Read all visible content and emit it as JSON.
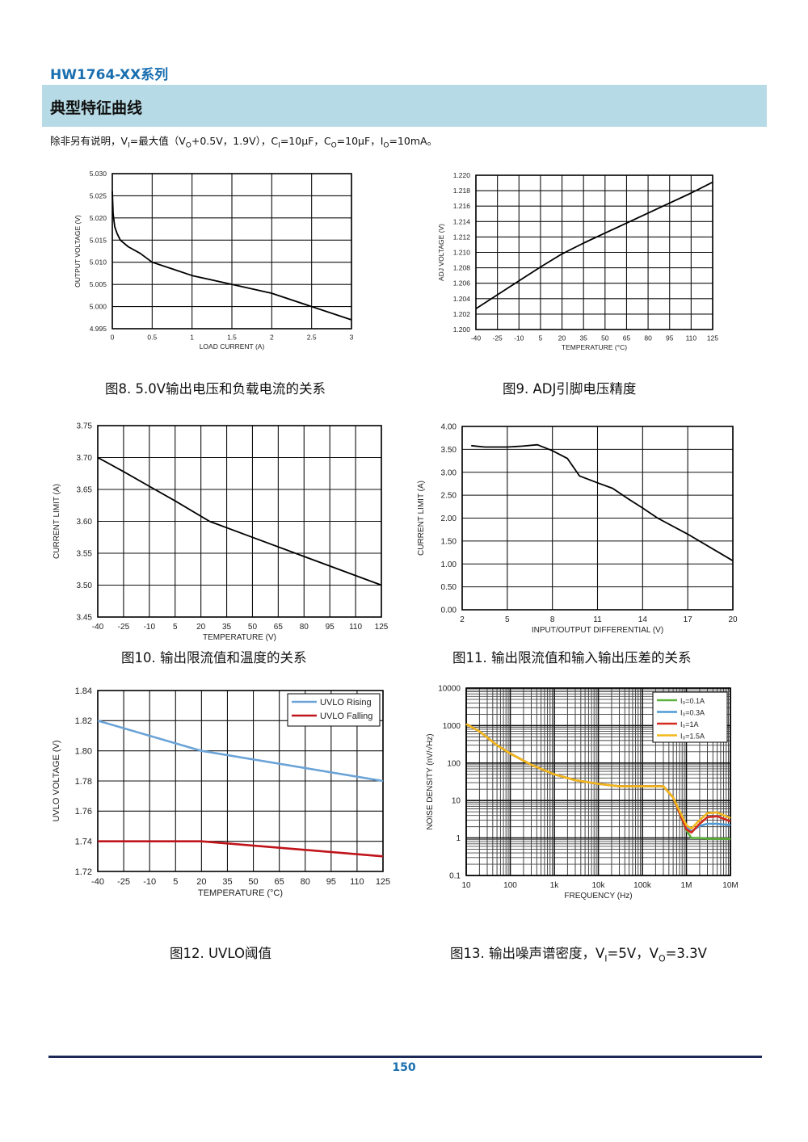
{
  "header": {
    "series": "HW1764-XX系列",
    "section": "典型特征曲线"
  },
  "conditions": {
    "lead": "除非另有说明，V",
    "vi_sub": "I",
    "mid1": "=最大值（V",
    "vo_sub": "O",
    "mid2": "+0.5V，1.9V），C",
    "ci_sub": "I",
    "mid3": "=10μF，C",
    "co_sub": "O",
    "mid4": "=10μF，I",
    "io_sub": "O",
    "tail": "=10mA。"
  },
  "captions": {
    "fig8": "图8. 5.0V输出电压和负载电流的关系",
    "fig9": "图9. ADJ引脚电压精度",
    "fig10": "图10. 输出限流值和温度的关系",
    "fig11": "图11. 输出限流值和输入输出压差的关系",
    "fig12": "图12. UVLO阈值",
    "fig13_a": "图13. 输出噪声谱密度，V",
    "fig13_vi_sub": "I",
    "fig13_b": "=5V，V",
    "fig13_vo_sub": "O",
    "fig13_c": "=3.3V"
  },
  "footer": {
    "page": "150"
  },
  "chart_data": [
    {
      "id": "fig8",
      "type": "line",
      "xlabel": "LOAD CURRENT (A)",
      "ylabel": "OUTPUT VOLTAGE (V)",
      "xlim": [
        0,
        3
      ],
      "ylim": [
        4.995,
        5.03
      ],
      "x_ticks": [
        "0",
        "0.5",
        "1",
        "1.5",
        "2",
        "2.5",
        "3"
      ],
      "y_ticks": [
        "4.995",
        "5.000",
        "5.005",
        "5.010",
        "5.015",
        "5.020",
        "5.025",
        "5.030"
      ],
      "grid": true,
      "series": [
        {
          "color": "#000000",
          "x": [
            0,
            0.01,
            0.03,
            0.06,
            0.1,
            0.2,
            0.35,
            0.5,
            0.75,
            1,
            1.5,
            2,
            2.5,
            3
          ],
          "y": [
            5.026,
            5.021,
            5.018,
            5.0165,
            5.015,
            5.0135,
            5.012,
            5.01,
            5.0085,
            5.007,
            5.005,
            5.003,
            5.0,
            4.997
          ]
        }
      ]
    },
    {
      "id": "fig9",
      "type": "line",
      "xlabel": "TEMPERATURE (°C)",
      "ylabel": "ADJ VOLTAGE (V)",
      "xlim": [
        -40,
        125
      ],
      "ylim": [
        1.2,
        1.22
      ],
      "x_ticks": [
        "-40",
        "-25",
        "-10",
        "5",
        "20",
        "35",
        "50",
        "65",
        "80",
        "95",
        "110",
        "125"
      ],
      "y_ticks": [
        "1.200",
        "1.202",
        "1.204",
        "1.206",
        "1.208",
        "1.210",
        "1.212",
        "1.214",
        "1.216",
        "1.218",
        "1.220"
      ],
      "grid": true,
      "series": [
        {
          "color": "#000000",
          "x": [
            -40,
            -25,
            -10,
            5,
            20,
            35,
            50,
            65,
            80,
            95,
            110,
            125
          ],
          "y": [
            1.2027,
            1.2045,
            1.2063,
            1.2081,
            1.2098,
            1.2112,
            1.2125,
            1.2138,
            1.2151,
            1.2164,
            1.2177,
            1.2191
          ]
        }
      ]
    },
    {
      "id": "fig10",
      "type": "line",
      "xlabel": "TEMPERATURE (V)",
      "ylabel": "CURRENT LIMIT (A)",
      "xlim": [
        -40,
        125
      ],
      "ylim": [
        3.45,
        3.75
      ],
      "x_ticks": [
        "-40",
        "-25",
        "-10",
        "5",
        "20",
        "35",
        "50",
        "65",
        "80",
        "95",
        "110",
        "125"
      ],
      "y_ticks": [
        "3.45",
        "3.50",
        "3.55",
        "3.60",
        "3.65",
        "3.70",
        "3.75"
      ],
      "grid": true,
      "series": [
        {
          "color": "#000000",
          "x": [
            -40,
            -25,
            -10,
            5,
            25,
            50,
            80,
            125
          ],
          "y": [
            3.7,
            3.678,
            3.655,
            3.632,
            3.6,
            3.575,
            3.545,
            3.5
          ]
        }
      ]
    },
    {
      "id": "fig11",
      "type": "line",
      "xlabel": "INPUT/OUTPUT DIFFERENTIAL (V)",
      "ylabel": "CURRENT LIMIT (A)",
      "xlim": [
        2,
        20
      ],
      "ylim": [
        0,
        4
      ],
      "x_ticks": [
        "2",
        "5",
        "8",
        "11",
        "14",
        "17",
        "20"
      ],
      "y_ticks": [
        "0.00",
        "0.50",
        "1.00",
        "1.50",
        "2.00",
        "2.50",
        "3.00",
        "3.50",
        "4.00"
      ],
      "grid": true,
      "series": [
        {
          "color": "#000000",
          "x": [
            2.6,
            3.5,
            5,
            6,
            7,
            8,
            9,
            9.8,
            11,
            12,
            13,
            14,
            15,
            17,
            20
          ],
          "y": [
            3.58,
            3.55,
            3.55,
            3.57,
            3.6,
            3.47,
            3.3,
            2.92,
            2.77,
            2.65,
            2.43,
            2.22,
            2.0,
            1.65,
            1.07
          ]
        }
      ]
    },
    {
      "id": "fig12",
      "type": "line",
      "xlabel": "TEMPERATURE (°C)",
      "ylabel": "UVLO VOLTAGE (V)",
      "xlim": [
        -40,
        125
      ],
      "ylim": [
        1.72,
        1.84
      ],
      "x_ticks": [
        "-40",
        "-25",
        "-10",
        "5",
        "20",
        "35",
        "50",
        "65",
        "80",
        "95",
        "110",
        "125"
      ],
      "y_ticks": [
        "1.72",
        "1.74",
        "1.76",
        "1.78",
        "1.80",
        "1.82",
        "1.84"
      ],
      "grid": true,
      "legend": "top-right",
      "series": [
        {
          "name": "UVLO Rising",
          "color": "#6aa3d8",
          "x": [
            -40,
            20,
            125
          ],
          "y": [
            1.82,
            1.8,
            1.78
          ]
        },
        {
          "name": "UVLO Falling",
          "color": "#c0141b",
          "x": [
            -40,
            20,
            125
          ],
          "y": [
            1.74,
            1.74,
            1.73
          ]
        }
      ]
    },
    {
      "id": "fig13",
      "type": "line",
      "log_x": true,
      "log_y": true,
      "xlabel": "FREQUENCY (Hz)",
      "ylabel": "NOISE DENSITY (nV/√Hz)",
      "xlim": [
        10,
        10000000
      ],
      "ylim": [
        0.1,
        10000
      ],
      "x_ticks": [
        "10",
        "100",
        "1k",
        "10k",
        "100k",
        "1M",
        "10M"
      ],
      "y_ticks": [
        "0.1",
        "1",
        "10",
        "100",
        "1000",
        "10000"
      ],
      "grid": true,
      "legend": "top-right",
      "series": [
        {
          "name": "I₀=0.1A",
          "color": "#5cb13a",
          "x": [
            10,
            20,
            50,
            100,
            300,
            1000,
            3000,
            10000,
            30000,
            100000,
            300000,
            500000,
            1000000,
            1300000,
            2000000,
            3000000,
            5000000,
            10000000
          ],
          "y": [
            1100,
            700,
            300,
            180,
            90,
            50,
            35,
            28,
            24,
            24,
            24,
            12,
            1.6,
            1.0,
            1.0,
            0.95,
            0.95,
            0.95
          ]
        },
        {
          "name": "I₀=0.3A",
          "color": "#4f9bd6",
          "x": [
            10,
            20,
            50,
            100,
            300,
            1000,
            3000,
            10000,
            30000,
            100000,
            300000,
            500000,
            1000000,
            1300000,
            2000000,
            3000000,
            5000000,
            10000000
          ],
          "y": [
            1100,
            700,
            300,
            180,
            90,
            50,
            35,
            28,
            24,
            24,
            24,
            12,
            1.9,
            1.5,
            2.1,
            2.4,
            2.4,
            2.2
          ]
        },
        {
          "name": "I₀=1A",
          "color": "#d42a1f",
          "x": [
            10,
            20,
            50,
            100,
            300,
            1000,
            3000,
            10000,
            30000,
            100000,
            300000,
            500000,
            1000000,
            1300000,
            2000000,
            3000000,
            5000000,
            10000000
          ],
          "y": [
            1100,
            700,
            300,
            180,
            90,
            50,
            35,
            28,
            24,
            24,
            24,
            12,
            1.7,
            1.4,
            2.4,
            3.6,
            3.8,
            2.8
          ]
        },
        {
          "name": "I₀=1.5A",
          "color": "#f3b81b",
          "x": [
            10,
            20,
            50,
            100,
            300,
            1000,
            3000,
            10000,
            30000,
            100000,
            300000,
            500000,
            1000000,
            1300000,
            2000000,
            3000000,
            5000000,
            10000000
          ],
          "y": [
            1100,
            700,
            300,
            180,
            90,
            50,
            35,
            28,
            24,
            24,
            24,
            12,
            2.2,
            1.8,
            3.0,
            4.6,
            4.8,
            3.4
          ]
        }
      ]
    }
  ]
}
